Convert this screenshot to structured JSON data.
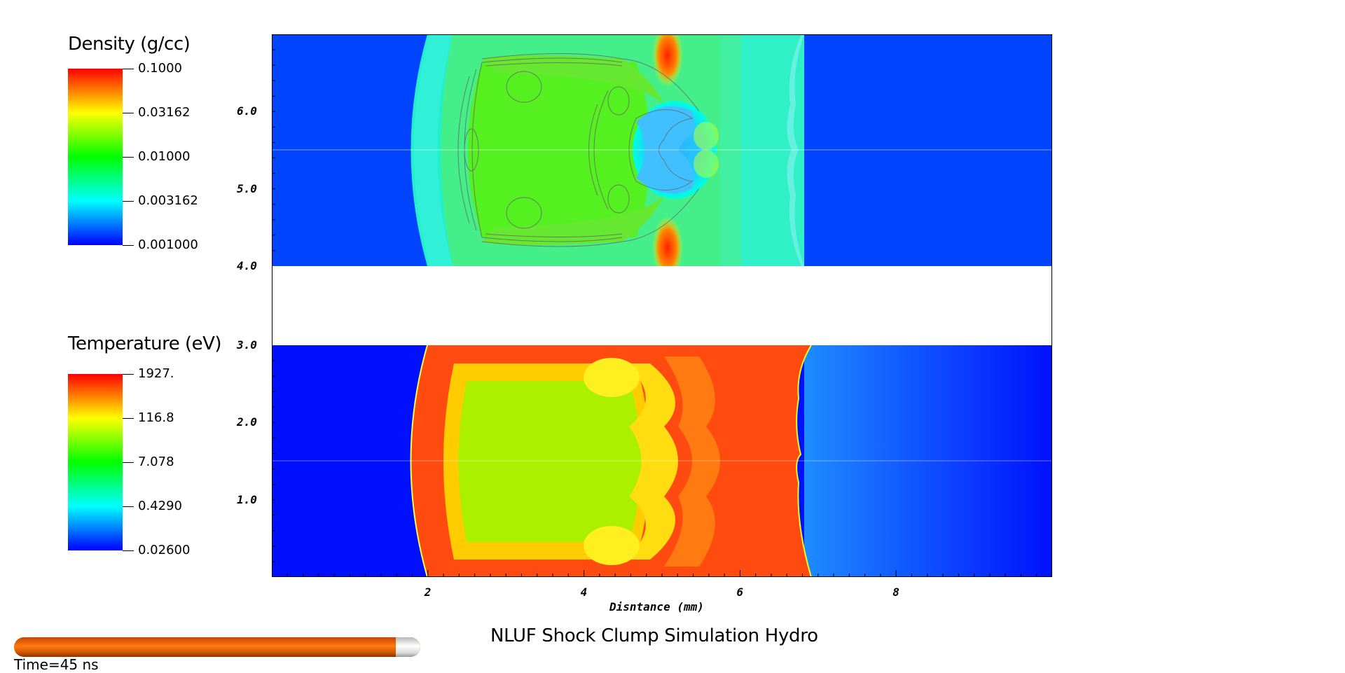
{
  "chart_data": [
    {
      "type": "heatmap",
      "name": "density",
      "colorbar": {
        "title": "Density (g/cc)",
        "scale": "log",
        "range": [
          0.001,
          0.1
        ],
        "tick_labels": [
          "0.1000",
          "0.03162",
          "0.01000",
          "0.003162",
          "0.001000"
        ],
        "tick_values": [
          0.1,
          0.03162,
          0.01,
          0.003162,
          0.001
        ]
      },
      "ylim": [
        4.0,
        7.0
      ],
      "y_tick_labels": [
        "4.0",
        "5.0",
        "6.0"
      ],
      "y_tick_values": [
        4.0,
        5.0,
        6.0
      ],
      "contours": true
    },
    {
      "type": "heatmap",
      "name": "temperature",
      "colorbar": {
        "title": "Temperature (eV)",
        "scale": "log",
        "range": [
          0.026,
          1927
        ],
        "tick_labels": [
          "1927.",
          "116.8",
          "7.078",
          "0.4290",
          "0.02600"
        ],
        "tick_values": [
          1927,
          116.8,
          7.078,
          0.429,
          0.026
        ]
      },
      "ylim": [
        0.0,
        3.0
      ],
      "y_tick_labels": [
        "1.0",
        "2.0",
        "3.0"
      ],
      "y_tick_values": [
        1.0,
        2.0,
        3.0
      ]
    }
  ],
  "axes": {
    "xlabel": "Disntance (mm)",
    "xlim": [
      0,
      10
    ],
    "x_tick_labels": [
      "2",
      "4",
      "6",
      "8"
    ],
    "x_tick_values": [
      2,
      4,
      6,
      8
    ]
  },
  "title": "NLUF Shock Clump Simulation Hydro",
  "time": {
    "label": "Time=45 ns",
    "progress": 0.94
  },
  "colors": {
    "blue": "#0022ff",
    "cyan": "#00ffff",
    "green": "#00ff00",
    "yellow": "#ffff00",
    "red": "#ff0000",
    "time_bar": "#ff7a10"
  }
}
